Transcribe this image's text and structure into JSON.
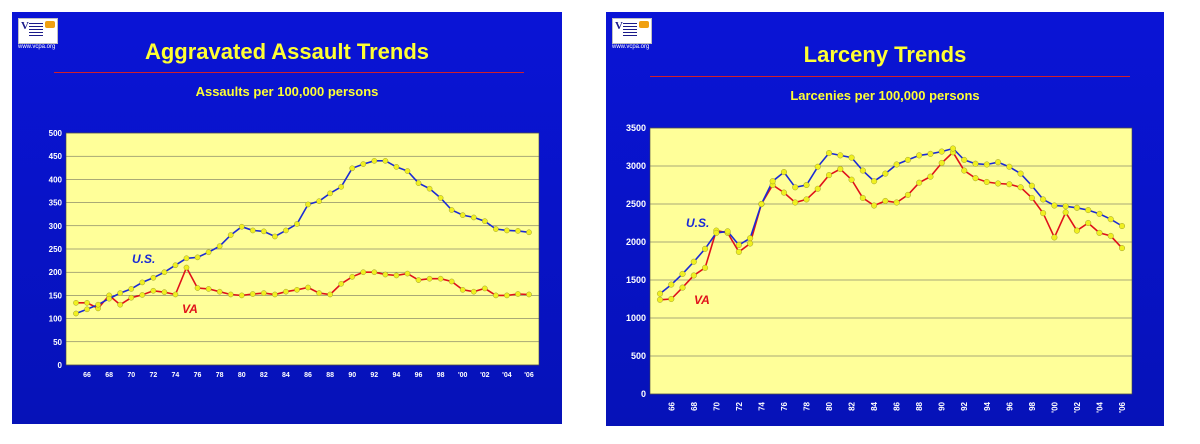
{
  "charts": [
    {
      "logo_text": "www.vcpa.org",
      "title": "Aggravated Assault Trends",
      "subtitle": "Assaults per 100,000 persons",
      "yticks": [
        "0",
        "50",
        "100",
        "150",
        "200",
        "250",
        "300",
        "350",
        "400",
        "450",
        "500"
      ],
      "xticks": [
        "66",
        "68",
        "70",
        "72",
        "74",
        "76",
        "78",
        "80",
        "82",
        "84",
        "86",
        "88",
        "90",
        "92",
        "94",
        "96",
        "98",
        "'00",
        "'02",
        "'04",
        "'06"
      ],
      "colors": {
        "us": "#1a2ad6",
        "va": "#e0101a",
        "marker": "#f0f020",
        "plot_bg": "#ffff99"
      }
    },
    {
      "logo_text": "www.vcpa.org",
      "title": "Larceny Trends",
      "subtitle": "Larcenies per 100,000 persons",
      "yticks": [
        "0",
        "500",
        "1000",
        "1500",
        "2000",
        "2500",
        "3000",
        "3500"
      ],
      "xticks": [
        "66",
        "68",
        "70",
        "72",
        "74",
        "76",
        "78",
        "80",
        "82",
        "84",
        "86",
        "88",
        "90",
        "92",
        "94",
        "96",
        "98",
        "'00",
        "'02",
        "'04",
        "'06"
      ],
      "colors": {
        "us": "#1a2ad6",
        "va": "#e0101a",
        "marker": "#f0f020",
        "plot_bg": "#ffff99"
      }
    }
  ],
  "chart_data": [
    {
      "type": "line",
      "title": "Aggravated Assault Trends",
      "subtitle": "Assaults per 100,000 persons",
      "x": [
        1965,
        1966,
        1967,
        1968,
        1969,
        1970,
        1971,
        1972,
        1973,
        1974,
        1975,
        1976,
        1977,
        1978,
        1979,
        1980,
        1981,
        1982,
        1983,
        1984,
        1985,
        1986,
        1987,
        1988,
        1989,
        1990,
        1991,
        1992,
        1993,
        1994,
        1995,
        1996,
        1997,
        1998,
        1999,
        2000,
        2001,
        2002,
        2003,
        2004,
        2005,
        2006
      ],
      "xtick_values": [
        1966,
        1968,
        1970,
        1972,
        1974,
        1976,
        1978,
        1980,
        1982,
        1984,
        1986,
        1988,
        1990,
        1992,
        1994,
        1996,
        1998,
        2000,
        2002,
        2004,
        2006
      ],
      "ylim": [
        0,
        500
      ],
      "grid": true,
      "series": [
        {
          "name": "U.S.",
          "values": [
            111,
            120,
            130,
            143,
            155,
            164,
            178,
            188,
            200,
            215,
            230,
            232,
            243,
            256,
            280,
            298,
            290,
            288,
            277,
            290,
            304,
            346,
            353,
            370,
            384,
            424,
            433,
            440,
            440,
            427,
            418,
            392,
            380,
            360,
            334,
            323,
            318,
            310,
            293,
            290,
            289,
            286
          ]
        },
        {
          "name": "VA",
          "values": [
            134,
            134,
            122,
            150,
            130,
            145,
            151,
            160,
            157,
            152,
            210,
            166,
            164,
            158,
            152,
            150,
            153,
            155,
            152,
            158,
            162,
            167,
            155,
            152,
            175,
            190,
            200,
            200,
            195,
            193,
            197,
            183,
            186,
            186,
            180,
            162,
            158,
            165,
            150,
            150,
            153,
            152
          ]
        }
      ]
    },
    {
      "type": "line",
      "title": "Larceny Trends",
      "subtitle": "Larcenies per 100,000 persons",
      "x": [
        1965,
        1966,
        1967,
        1968,
        1969,
        1970,
        1971,
        1972,
        1973,
        1974,
        1975,
        1976,
        1977,
        1978,
        1979,
        1980,
        1981,
        1982,
        1983,
        1984,
        1985,
        1986,
        1987,
        1988,
        1989,
        1990,
        1991,
        1992,
        1993,
        1994,
        1995,
        1996,
        1997,
        1998,
        1999,
        2000,
        2001,
        2002,
        2003,
        2004,
        2005,
        2006
      ],
      "xtick_values": [
        1966,
        1968,
        1970,
        1972,
        1974,
        1976,
        1978,
        1980,
        1982,
        1984,
        1986,
        1988,
        1990,
        1992,
        1994,
        1996,
        1998,
        2000,
        2002,
        2004,
        2006
      ],
      "ylim": [
        0,
        3500
      ],
      "grid": true,
      "series": [
        {
          "name": "U.S.",
          "values": [
            1320,
            1440,
            1580,
            1740,
            1910,
            2120,
            2140,
            1960,
            2050,
            2500,
            2800,
            2920,
            2720,
            2750,
            2990,
            3170,
            3140,
            3110,
            2940,
            2800,
            2900,
            3020,
            3080,
            3140,
            3160,
            3190,
            3230,
            3080,
            3030,
            3020,
            3050,
            2990,
            2900,
            2740,
            2560,
            2480,
            2470,
            2450,
            2420,
            2370,
            2300,
            2210
          ]
        },
        {
          "name": "VA",
          "values": [
            1240,
            1250,
            1400,
            1560,
            1660,
            2150,
            2120,
            1870,
            1980,
            2500,
            2750,
            2650,
            2520,
            2560,
            2700,
            2880,
            2960,
            2820,
            2580,
            2480,
            2540,
            2520,
            2620,
            2780,
            2860,
            3040,
            3180,
            2940,
            2840,
            2790,
            2770,
            2760,
            2720,
            2580,
            2380,
            2060,
            2390,
            2150,
            2250,
            2120,
            2080,
            1920
          ]
        }
      ]
    }
  ]
}
